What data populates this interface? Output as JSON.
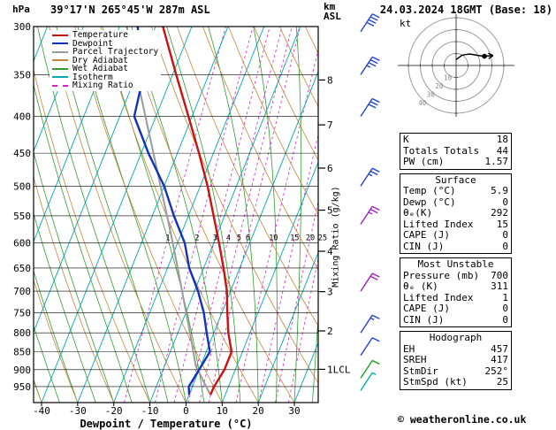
{
  "header": {
    "pressure_unit": "hPa",
    "station": "39°17'N 265°45'W 287m ASL",
    "km_label": "km",
    "asl_label": "ASL",
    "datetime": "24.03.2024 18GMT (Base: 18)"
  },
  "footer": {
    "copyright": "© weatheronline.co.uk"
  },
  "panel": {
    "stats": [
      {
        "label": "K",
        "value": "18"
      },
      {
        "label": "Totals Totals",
        "value": "44"
      },
      {
        "label": "PW (cm)",
        "value": "1.57"
      }
    ],
    "sections": [
      {
        "title": "Surface",
        "rows": [
          {
            "label": "Temp (°C)",
            "value": "5.9"
          },
          {
            "label": "Dewp (°C)",
            "value": "0"
          },
          {
            "label": "θₑ(K)",
            "value": "292"
          },
          {
            "label": "Lifted Index",
            "value": "15"
          },
          {
            "label": "CAPE (J)",
            "value": "0"
          },
          {
            "label": "CIN (J)",
            "value": "0"
          }
        ]
      },
      {
        "title": "Most Unstable",
        "rows": [
          {
            "label": "Pressure (mb)",
            "value": "700"
          },
          {
            "label": "θₑ (K)",
            "value": "311"
          },
          {
            "label": "Lifted Index",
            "value": "1"
          },
          {
            "label": "CAPE (J)",
            "value": "0"
          },
          {
            "label": "CIN (J)",
            "value": "0"
          }
        ]
      },
      {
        "title": "Hodograph",
        "rows": [
          {
            "label": "EH",
            "value": "457"
          },
          {
            "label": "SREH",
            "value": "417"
          },
          {
            "label": "StmDir",
            "value": "252°"
          },
          {
            "label": "StmSpd (kt)",
            "value": "25"
          }
        ]
      }
    ]
  },
  "chart_data": {
    "type": "skewt-log-p",
    "title": "39°17'N 265°45'W 287m ASL",
    "datetime": "24.03.2024 18GMT (Base: 18)",
    "pressure_axis": {
      "unit": "hPa",
      "pmin": 300,
      "pmax": 1000,
      "ticks": [
        300,
        350,
        400,
        450,
        500,
        550,
        600,
        650,
        700,
        750,
        800,
        850,
        900,
        950
      ]
    },
    "temp_axis": {
      "label": "Dewpoint / Temperature (°C)",
      "min": -40,
      "max": 30,
      "ticks": [
        -40,
        -30,
        -20,
        -10,
        0,
        10,
        20,
        30
      ]
    },
    "height_axis": {
      "unit": "km ASL",
      "ticks": [
        {
          "km": 8,
          "p": 356
        },
        {
          "km": 7,
          "p": 411
        },
        {
          "km": 6,
          "p": 472
        },
        {
          "km": 5,
          "p": 540
        },
        {
          "km": 4,
          "p": 616
        },
        {
          "km": 3,
          "p": 701
        },
        {
          "km": 2,
          "p": 795
        },
        {
          "km": 1,
          "p": 899,
          "suffix": "LCL"
        }
      ]
    },
    "mixing_ratio": {
      "label": "Mixing Ratio (g/kg)",
      "values": [
        1,
        2,
        3,
        4,
        5,
        6,
        10,
        15,
        20,
        25
      ],
      "label_pressure": 590
    },
    "background": {
      "isotherm_step": 10,
      "dry_adiabat_step": 10,
      "wet_adiabat_step": 5
    },
    "colors": {
      "temperature": "#cc1111",
      "dewpoint": "#1133bb",
      "parcel": "#9a9a9a",
      "dry_adiabat": "#c9853c",
      "wet_adiabat": "#2f9e2f",
      "isotherm": "#00a8b0",
      "mixing_ratio": "#dd22cc",
      "grid": "#000000"
    },
    "legend": [
      {
        "label": "Temperature",
        "color": "#cc1111",
        "style": "solid"
      },
      {
        "label": "Dewpoint",
        "color": "#1133bb",
        "style": "solid"
      },
      {
        "label": "Parcel Trajectory",
        "color": "#9a9a9a",
        "style": "solid"
      },
      {
        "label": "Dry Adiabat",
        "color": "#c9853c",
        "style": "solid"
      },
      {
        "label": "Wet Adiabat",
        "color": "#2f9e2f",
        "style": "solid"
      },
      {
        "label": "Isotherm",
        "color": "#00a8b0",
        "style": "solid"
      },
      {
        "label": "Mixing Ratio",
        "color": "#dd22cc",
        "style": "dashed"
      }
    ],
    "sounding": {
      "temperature": [
        [
          975,
          5.9
        ],
        [
          950,
          6
        ],
        [
          900,
          7
        ],
        [
          850,
          7
        ],
        [
          800,
          4
        ],
        [
          750,
          1.5
        ],
        [
          700,
          -1
        ],
        [
          650,
          -4.5
        ],
        [
          600,
          -8.5
        ],
        [
          550,
          -13
        ],
        [
          500,
          -18
        ],
        [
          450,
          -24
        ],
        [
          400,
          -31
        ],
        [
          350,
          -39
        ],
        [
          300,
          -48
        ]
      ],
      "dewpoint": [
        [
          975,
          0
        ],
        [
          950,
          -1
        ],
        [
          900,
          0
        ],
        [
          850,
          1
        ],
        [
          800,
          -2
        ],
        [
          750,
          -5
        ],
        [
          700,
          -9
        ],
        [
          650,
          -14
        ],
        [
          600,
          -18
        ],
        [
          550,
          -24
        ],
        [
          500,
          -30
        ],
        [
          450,
          -38
        ],
        [
          400,
          -46
        ],
        [
          350,
          -48
        ],
        [
          300,
          -55
        ]
      ],
      "parcel": [
        [
          975,
          5.9
        ],
        [
          950,
          3.8
        ],
        [
          900,
          -0.4
        ],
        [
          890,
          -1.3
        ],
        [
          850,
          -3.6
        ],
        [
          800,
          -6.6
        ],
        [
          750,
          -9.9
        ],
        [
          700,
          -13.4
        ],
        [
          650,
          -17.2
        ],
        [
          600,
          -21.3
        ],
        [
          550,
          -25.9
        ],
        [
          500,
          -31
        ],
        [
          450,
          -36.6
        ],
        [
          400,
          -42.9
        ],
        [
          350,
          -50
        ],
        [
          300,
          -58
        ]
      ]
    },
    "wind_barbs": [
      {
        "p": 305,
        "speed": 40,
        "color": "#2244cc"
      },
      {
        "p": 350,
        "speed": 35,
        "color": "#2244cc"
      },
      {
        "p": 400,
        "speed": 30,
        "color": "#2244cc"
      },
      {
        "p": 500,
        "speed": 25,
        "color": "#2244cc"
      },
      {
        "p": 565,
        "speed": 25,
        "color": "#a020c0"
      },
      {
        "p": 700,
        "speed": 20,
        "color": "#a020c0"
      },
      {
        "p": 800,
        "speed": 15,
        "color": "#2244cc"
      },
      {
        "p": 860,
        "speed": 10,
        "color": "#2244cc"
      },
      {
        "p": 925,
        "speed": 10,
        "color": "#22a022"
      },
      {
        "p": 962,
        "speed": 5,
        "color": "#00b0b0"
      }
    ],
    "hodograph": {
      "unit": "kt",
      "rings": [
        10,
        20,
        30,
        40
      ],
      "trace": [
        [
          5,
          180
        ],
        [
          10,
          210
        ],
        [
          15,
          230
        ],
        [
          20,
          245
        ],
        [
          25,
          252
        ],
        [
          32,
          255
        ]
      ],
      "storm": [
        25,
        252
      ]
    }
  }
}
